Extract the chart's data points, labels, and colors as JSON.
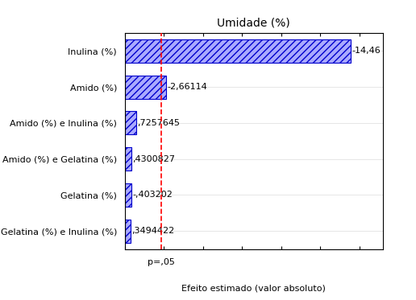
{
  "title": "Umidade (%)",
  "xlabel": "Efeito estimado (valor absoluto)",
  "p_label": "p=,05",
  "categories": [
    "Gelatina (%) e Inulina (%)",
    "Gelatina (%)",
    "Amido (%) e Gelatina (%)",
    "Amido (%) e Inulina (%)",
    "Amido (%)",
    "Inulina (%)"
  ],
  "values": [
    0.3494422,
    0.403202,
    0.4300827,
    0.7257645,
    2.66114,
    14.46
  ],
  "bar_labels": [
    ",3494422",
    "-,403202",
    ",4300827",
    ",7257645",
    "-2,66114",
    "-14,46"
  ],
  "p_value_line": 2.306,
  "bar_facecolor": "#aaaaff",
  "bar_edgecolor": "#0000cc",
  "hatch": "////",
  "dashed_line_color": "red",
  "xlim_max": 16.5,
  "title_fontsize": 10,
  "label_fontsize": 8,
  "tick_fontsize": 8,
  "bar_height": 0.65
}
